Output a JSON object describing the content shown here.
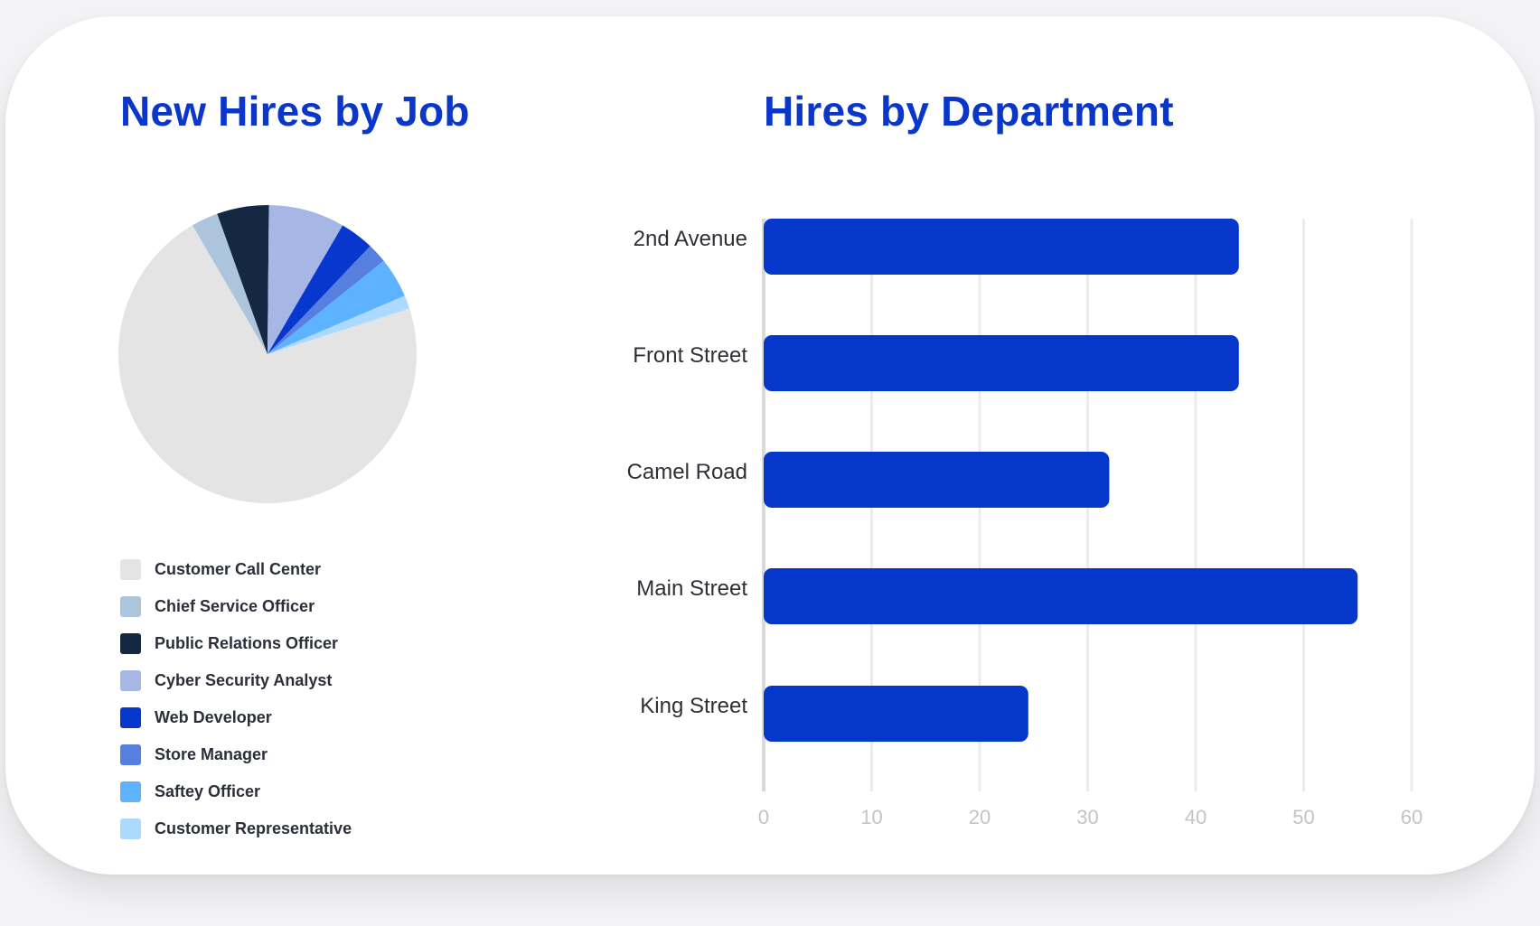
{
  "pie": {
    "title": "New Hires by Job"
  },
  "bar": {
    "title": "Hires by Department"
  },
  "chart_data": [
    {
      "type": "pie",
      "title": "New Hires by Job",
      "legend_position": "bottom",
      "slices": [
        {
          "label": "Customer Call Center",
          "value": 73.7,
          "color": "#e4e4e4"
        },
        {
          "label": "Chief Service Officer",
          "value": 3.0,
          "color": "#adc5dc"
        },
        {
          "label": "Public Relations Officer",
          "value": 5.8,
          "color": "#142844"
        },
        {
          "label": "Cyber Security Analyst",
          "value": 8.5,
          "color": "#a6b7e6"
        },
        {
          "label": "Web Developer",
          "value": 3.8,
          "color": "#0737cd"
        },
        {
          "label": "Store Manager",
          "value": 2.2,
          "color": "#577fdf"
        },
        {
          "label": "Saftey Officer",
          "value": 4.5,
          "color": "#5db3ff"
        },
        {
          "label": "Customer Representative",
          "value": 1.5,
          "color": "#acd9ff"
        }
      ]
    },
    {
      "type": "bar",
      "orientation": "horizontal",
      "title": "Hires by Department",
      "categories": [
        "2nd Avenue",
        "Front Street",
        "Camel Road",
        "Main Street",
        "King Street"
      ],
      "values": [
        44,
        44,
        32,
        55,
        24.5
      ],
      "xlim": [
        0,
        60
      ],
      "ticks": [
        "0",
        "10",
        "20",
        "30",
        "40",
        "50",
        "60"
      ],
      "grid": true,
      "bar_color": "#0637cb"
    }
  ]
}
